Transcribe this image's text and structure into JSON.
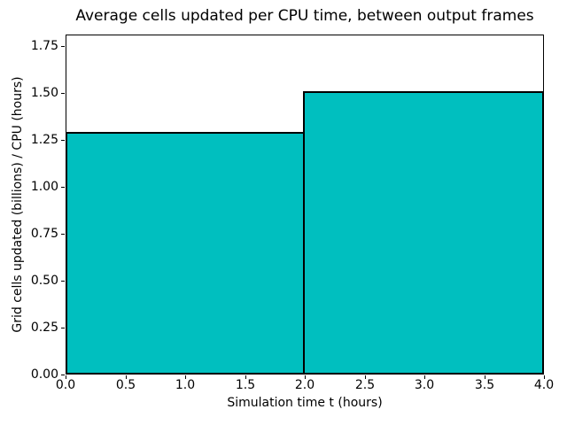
{
  "figure": {
    "background_color": "#ffffff",
    "text_color": "#000000"
  },
  "chart_data": {
    "type": "bar",
    "subtype": "histogram-step",
    "title": "Average cells updated per CPU time, between output frames",
    "xlabel": "Simulation time t (hours)",
    "ylabel": "Grid cells updated (billions) / CPU (hours)",
    "bin_edges": [
      0,
      2,
      4
    ],
    "values": [
      1.29,
      1.51
    ],
    "xlim": [
      0,
      4
    ],
    "ylim": [
      0,
      1.81
    ],
    "xticks": {
      "values": [
        0,
        0.5,
        1,
        1.5,
        2,
        2.5,
        3,
        3.5,
        4
      ],
      "labels": [
        "0.0",
        "0.5",
        "1.0",
        "1.5",
        "2.0",
        "2.5",
        "3.0",
        "3.5",
        "4.0"
      ]
    },
    "yticks": {
      "values": [
        0,
        0.25,
        0.5,
        0.75,
        1,
        1.25,
        1.5,
        1.75
      ],
      "labels": [
        "0.00",
        "0.25",
        "0.50",
        "0.75",
        "1.00",
        "1.25",
        "1.50",
        "1.75"
      ]
    },
    "bar_fill_color": "#00bfbf",
    "bar_edge_color": "#000000",
    "bar_edge_width": 2,
    "grid": false,
    "legend": null
  }
}
